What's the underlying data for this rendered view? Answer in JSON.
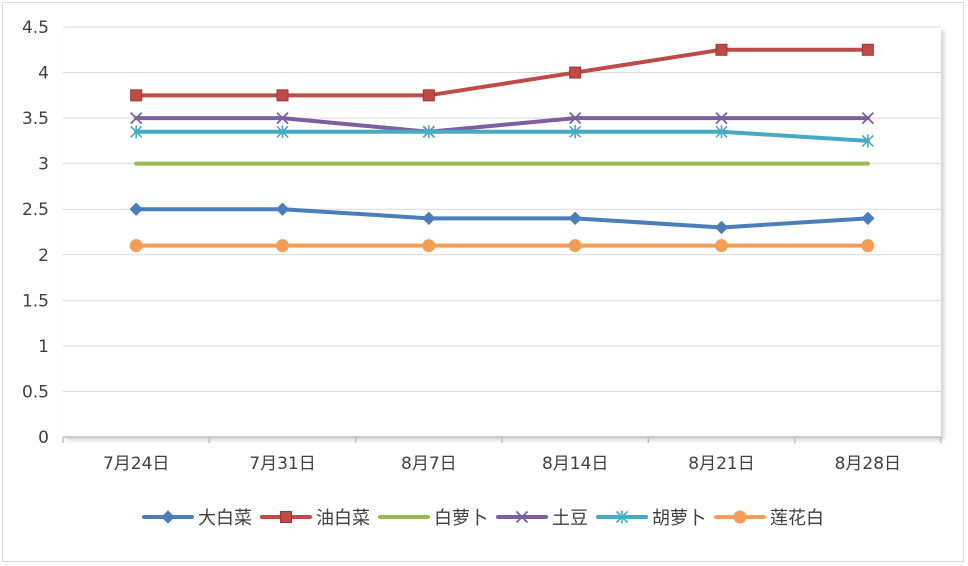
{
  "chart_data": {
    "type": "line",
    "title": "",
    "xlabel": "",
    "ylabel": "",
    "categories": [
      "7月24日",
      "7月31日",
      "8月7日",
      "8月14日",
      "8月21日",
      "8月28日"
    ],
    "ylim": [
      0,
      4.5
    ],
    "yticks": [
      "0",
      "0.5",
      "1",
      "1.5",
      "2",
      "2.5",
      "3",
      "3.5",
      "4",
      "4.5"
    ],
    "grid": true,
    "legend_position": "bottom",
    "series": [
      {
        "name": "大白菜",
        "values": [
          2.5,
          2.5,
          2.4,
          2.4,
          2.3,
          2.4
        ],
        "color": "#4a7ebb",
        "marker": "diamond"
      },
      {
        "name": "油白菜",
        "values": [
          3.75,
          3.75,
          3.75,
          4.0,
          4.25,
          4.25
        ],
        "color": "#be4b48",
        "marker": "square"
      },
      {
        "name": "白萝卜",
        "values": [
          3.0,
          3.0,
          3.0,
          3.0,
          3.0,
          3.0
        ],
        "color": "#98b954",
        "marker": "none"
      },
      {
        "name": "土豆",
        "values": [
          3.5,
          3.5,
          3.35,
          3.5,
          3.5,
          3.5
        ],
        "color": "#7d5fa0",
        "marker": "x"
      },
      {
        "name": "胡萝卜",
        "values": [
          3.35,
          3.35,
          3.35,
          3.35,
          3.35,
          3.25
        ],
        "color": "#46aac4",
        "marker": "star"
      },
      {
        "name": "莲花白",
        "values": [
          2.1,
          2.1,
          2.1,
          2.1,
          2.1,
          2.1
        ],
        "color": "#f59d56",
        "marker": "circle"
      }
    ]
  }
}
